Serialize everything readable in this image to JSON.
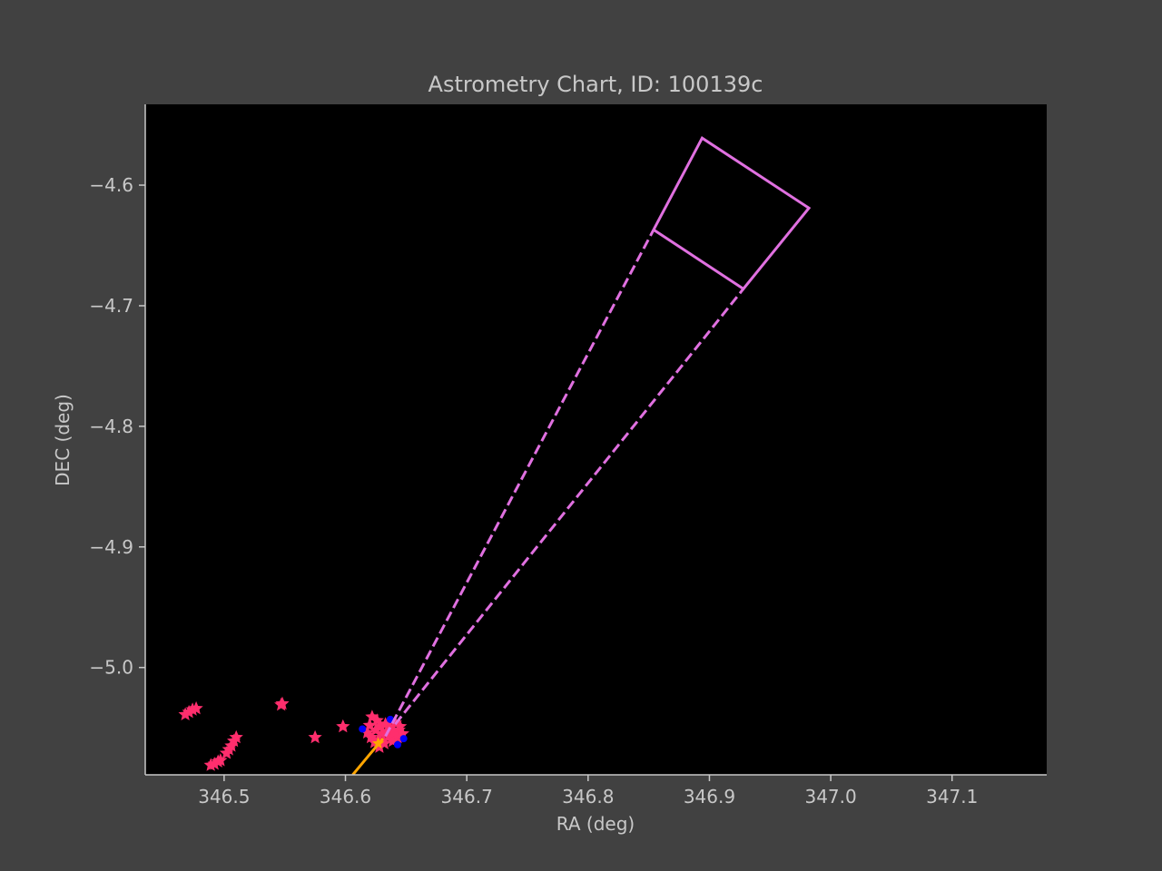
{
  "chart_data": {
    "type": "scatter",
    "title": "Astrometry Chart, ID: 100139c",
    "xlabel": "RA (deg)",
    "ylabel": "DEC (deg)",
    "xlim": [
      346.435,
      347.178
    ],
    "ylim": [
      -5.089,
      -4.533
    ],
    "xticks": [
      346.5,
      346.6,
      346.7,
      346.8,
      346.9,
      347.0,
      347.1
    ],
    "xtick_labels": [
      "346.5",
      "346.6",
      "346.7",
      "346.8",
      "346.9",
      "347.0",
      "347.1"
    ],
    "yticks": [
      -4.6,
      -4.7,
      -4.8,
      -4.9,
      -5.0
    ],
    "ytick_labels": [
      "−4.6",
      "−4.7",
      "−4.8",
      "−4.9",
      "−5.0"
    ],
    "grid": false,
    "background": "#000000",
    "colors": {
      "figure_bg": "#414141",
      "axes_bg": "#000000",
      "axis_text": "#c8c8c8",
      "stars": "#ff2e6d",
      "reference_points": "#0000ff",
      "track": "#ffa500",
      "field_outline": "#e070e0"
    },
    "series": [
      {
        "kind": "star-markers",
        "marker": "star",
        "points": [
          [
            346.468,
            -5.039
          ],
          [
            346.471,
            -5.037
          ],
          [
            346.474,
            -5.035
          ],
          [
            346.477,
            -5.034
          ],
          [
            346.489,
            -5.081
          ],
          [
            346.492,
            -5.08
          ],
          [
            346.495,
            -5.078
          ],
          [
            346.497,
            -5.077
          ],
          [
            346.502,
            -5.071
          ],
          [
            346.504,
            -5.068
          ],
          [
            346.506,
            -5.065
          ],
          [
            346.508,
            -5.061
          ],
          [
            346.51,
            -5.058
          ],
          [
            346.547,
            -5.031
          ],
          [
            346.548,
            -5.03
          ],
          [
            346.575,
            -5.058
          ],
          [
            346.598,
            -5.049
          ],
          [
            346.622,
            -5.041
          ],
          [
            346.626,
            -5.044
          ],
          [
            346.62,
            -5.048
          ],
          [
            346.618,
            -5.054
          ],
          [
            346.621,
            -5.058
          ],
          [
            346.624,
            -5.062
          ],
          [
            346.628,
            -5.066
          ],
          [
            346.632,
            -5.063
          ],
          [
            346.625,
            -5.052
          ],
          [
            346.629,
            -5.049
          ],
          [
            346.633,
            -5.047
          ],
          [
            346.637,
            -5.05
          ],
          [
            346.641,
            -5.046
          ],
          [
            346.644,
            -5.052
          ],
          [
            346.647,
            -5.055
          ],
          [
            346.643,
            -5.058
          ],
          [
            346.639,
            -5.061
          ],
          [
            346.636,
            -5.057
          ],
          [
            346.63,
            -5.055
          ],
          [
            346.634,
            -5.053
          ],
          [
            346.64,
            -5.054
          ],
          [
            346.645,
            -5.049
          ],
          [
            346.627,
            -5.06
          ]
        ]
      },
      {
        "kind": "reference-points",
        "marker": "circle",
        "points": [
          [
            346.614,
            -5.051
          ],
          [
            346.643,
            -5.064
          ],
          [
            346.648,
            -5.059
          ],
          [
            346.637,
            -5.043
          ]
        ]
      },
      {
        "kind": "track",
        "style": "solid",
        "points": [
          [
            346.606,
            -5.089
          ],
          [
            346.62,
            -5.072
          ],
          [
            346.631,
            -5.059
          ]
        ],
        "markers": [
          [
            346.627,
            -5.063
          ]
        ]
      },
      {
        "kind": "field-outline",
        "style": "solid",
        "points": [
          [
            346.854,
            -4.637
          ],
          [
            346.894,
            -4.561
          ],
          [
            346.982,
            -4.619
          ],
          [
            346.928,
            -4.686
          ],
          [
            346.854,
            -4.637
          ]
        ]
      },
      {
        "kind": "field-rays",
        "style": "dashed",
        "lines": [
          [
            [
              346.633,
              -5.057
            ],
            [
              346.854,
              -4.637
            ]
          ],
          [
            [
              346.641,
              -5.047
            ],
            [
              346.928,
              -4.686
            ]
          ]
        ]
      }
    ]
  }
}
